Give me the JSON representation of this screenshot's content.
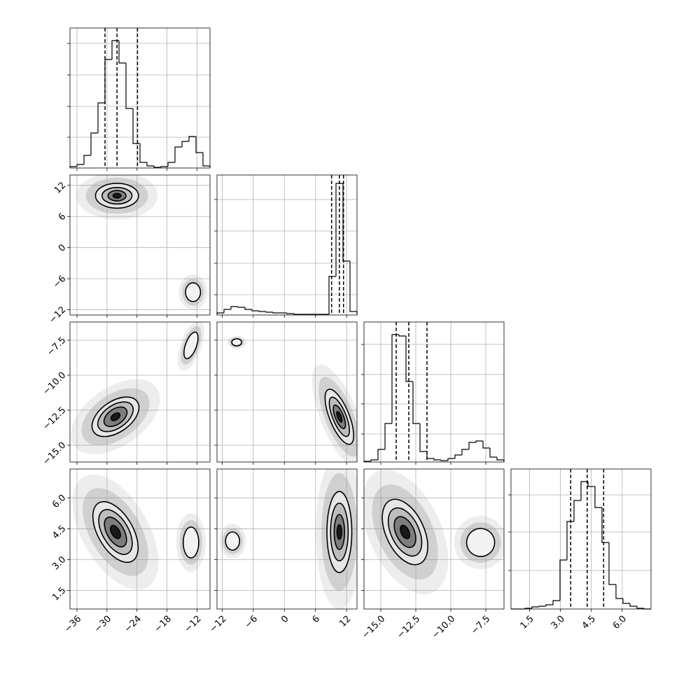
{
  "chart_data": {
    "type": "corner",
    "params": [
      {
        "lim": [
          -37.4,
          -9.4
        ],
        "ticks": [
          {
            "value": -36,
            "label": "−36"
          },
          {
            "value": -30,
            "label": "−30"
          },
          {
            "value": -24,
            "label": "−24"
          },
          {
            "value": -18,
            "label": "−18"
          },
          {
            "value": -12,
            "label": "−12"
          }
        ],
        "hist": {
          "bins": [
            -37.4,
            -36,
            -34.6,
            -33.2,
            -31.8,
            -30.4,
            -29,
            -27.6,
            -26.2,
            -24.8,
            -23.4,
            -22,
            -20.6,
            -19.2,
            -17.8,
            -16.4,
            -15,
            -13.6,
            -12.2,
            -10.8,
            -9.4
          ],
          "counts": [
            10,
            25,
            90,
            250,
            465,
            775,
            910,
            750,
            425,
            175,
            40,
            15,
            5,
            10,
            40,
            150,
            190,
            225,
            110,
            15
          ],
          "ylim": [
            0,
            1000
          ],
          "yticks": [
            220,
            440,
            665,
            890
          ]
        },
        "quantiles": [
          -30.4,
          -28.0,
          -23.9
        ]
      },
      {
        "lim": [
          -13,
          14
        ],
        "ticks": [
          {
            "value": -12,
            "label": "−12"
          },
          {
            "value": -6,
            "label": "−6"
          },
          0,
          6,
          12
        ],
        "hist": {
          "bins": [
            -13,
            -11.65,
            -10.3,
            -8.95,
            -7.6,
            -6.25,
            -4.9,
            -3.55,
            -2.2,
            -0.85,
            0.5,
            1.85,
            3.2,
            4.55,
            5.9,
            7.25,
            8.6,
            9.95,
            11.3,
            12.65,
            14
          ],
          "counts": [
            15,
            40,
            60,
            55,
            40,
            30,
            25,
            20,
            15,
            15,
            10,
            5,
            5,
            5,
            5,
            5,
            275,
            940,
            385,
            25
          ],
          "ylim": [
            0,
            1000
          ],
          "yticks": [
            145,
            370,
            600,
            825
          ]
        },
        "quantiles": [
          9.1,
          10.6,
          11.4
        ]
      },
      {
        "lim": [
          -16.2,
          -6.2
        ],
        "ticks": [
          {
            "value": -15,
            "label": "−15.0"
          },
          {
            "value": -12.5,
            "label": "−12.5"
          },
          {
            "value": -10,
            "label": "−10.0"
          },
          {
            "value": -7.5,
            "label": "−7.5"
          }
        ],
        "hist": {
          "bins": [
            -16.2,
            -15.7,
            -15.2,
            -14.7,
            -14.2,
            -13.7,
            -13.2,
            -12.7,
            -12.2,
            -11.7,
            -11.2,
            -10.7,
            -10.2,
            -9.7,
            -9.2,
            -8.7,
            -8.2,
            -7.7,
            -7.2,
            -6.7,
            -6.2
          ],
          "counts": [
            5,
            15,
            90,
            275,
            910,
            900,
            575,
            275,
            75,
            25,
            15,
            10,
            25,
            50,
            90,
            140,
            150,
            100,
            35,
            15
          ],
          "ylim": [
            0,
            1000
          ],
          "yticks": [
            200,
            415,
            625,
            840
          ]
        },
        "quantiles": [
          -13.9,
          -13.0,
          -11.7
        ]
      },
      {
        "lim": [
          0.6,
          7.4
        ],
        "ticks": [
          1.5,
          {
            "value": 3,
            "label": "3.0"
          },
          4.5,
          {
            "value": 6,
            "label": "6.0"
          }
        ],
        "hist": {
          "bins": [
            0.6,
            0.94,
            1.28,
            1.62,
            1.96,
            2.3,
            2.64,
            2.98,
            3.32,
            3.66,
            4.0,
            4.34,
            4.68,
            5.02,
            5.36,
            5.7,
            6.04,
            6.38,
            6.72,
            7.06,
            7.4
          ],
          "counts": [
            0,
            0,
            5,
            15,
            20,
            30,
            60,
            350,
            625,
            775,
            910,
            875,
            725,
            475,
            175,
            75,
            40,
            20,
            5,
            0
          ],
          "ylim": [
            0,
            1000
          ],
          "yticks": [
            275,
            550,
            815
          ]
        },
        "quantiles": [
          3.5,
          4.3,
          5.1
        ]
      }
    ],
    "panels": [
      [
        {
          "modes": [
            {
              "cx": -28,
              "cy": 10,
              "rx": [
                4.3,
                3.0,
                1.8,
                0.8
              ],
              "ry": [
                2.4,
                1.6,
                1.0,
                0.45
              ],
              "angle": 0
            },
            {
              "cx": -12.8,
              "cy": -8.6,
              "rx": [
                1.5
              ],
              "ry": [
                1.8
              ],
              "angle": 0
            }
          ]
        }
      ],
      [
        {
          "modes": [
            {
              "cx": -28.3,
              "cy": -12.97,
              "rx": [
                5.3,
                4.0,
                2.6,
                1.0
              ],
              "ry": [
                1.1,
                0.82,
                0.55,
                0.22
              ],
              "angle": -35
            },
            {
              "cx": -13.2,
              "cy": -7.87,
              "rx": [
                1.1
              ],
              "ry": [
                1.0
              ],
              "angle": 20
            }
          ]
        },
        {
          "modes": [
            {
              "cx": -9.2,
              "cy": -7.65,
              "rx": [
                0.95
              ],
              "ry": [
                0.25
              ],
              "angle": 0
            },
            {
              "cx": 10.6,
              "cy": -12.97,
              "rx": [
                1.9,
                1.3,
                0.8,
                0.35
              ],
              "ry": [
                2.1,
                1.5,
                0.9,
                0.4
              ],
              "angle": -22
            }
          ]
        }
      ],
      [
        {
          "modes": [
            {
              "cx": -28.3,
              "cy": 4.34,
              "rx": [
                3.5,
                2.6,
                1.7,
                0.8
              ],
              "ry": [
                1.63,
                1.2,
                0.8,
                0.35
              ],
              "angle": -30
            },
            {
              "cx": -13.2,
              "cy": 3.83,
              "rx": [
                1.55
              ],
              "ry": [
                0.75
              ],
              "angle": 0
            }
          ]
        },
        {
          "modes": [
            {
              "cx": -10.0,
              "cy": 3.9,
              "rx": [
                1.35
              ],
              "ry": [
                0.44
              ],
              "angle": 0
            },
            {
              "cx": 10.6,
              "cy": 4.34,
              "rx": [
                2.4,
                1.7,
                1.0,
                0.45
              ],
              "ry": [
                1.97,
                1.4,
                0.85,
                0.35
              ],
              "angle": 0
            }
          ]
        },
        {
          "modes": [
            {
              "cx": -13.27,
              "cy": 4.34,
              "rx": [
                1.36,
                1.0,
                0.65,
                0.28
              ],
              "ry": [
                1.7,
                1.25,
                0.8,
                0.35
              ],
              "angle": -25
            },
            {
              "cx": -7.87,
              "cy": 3.83,
              "rx": [
                1.0
              ],
              "ry": [
                0.68
              ],
              "angle": 20
            }
          ]
        }
      ]
    ]
  }
}
